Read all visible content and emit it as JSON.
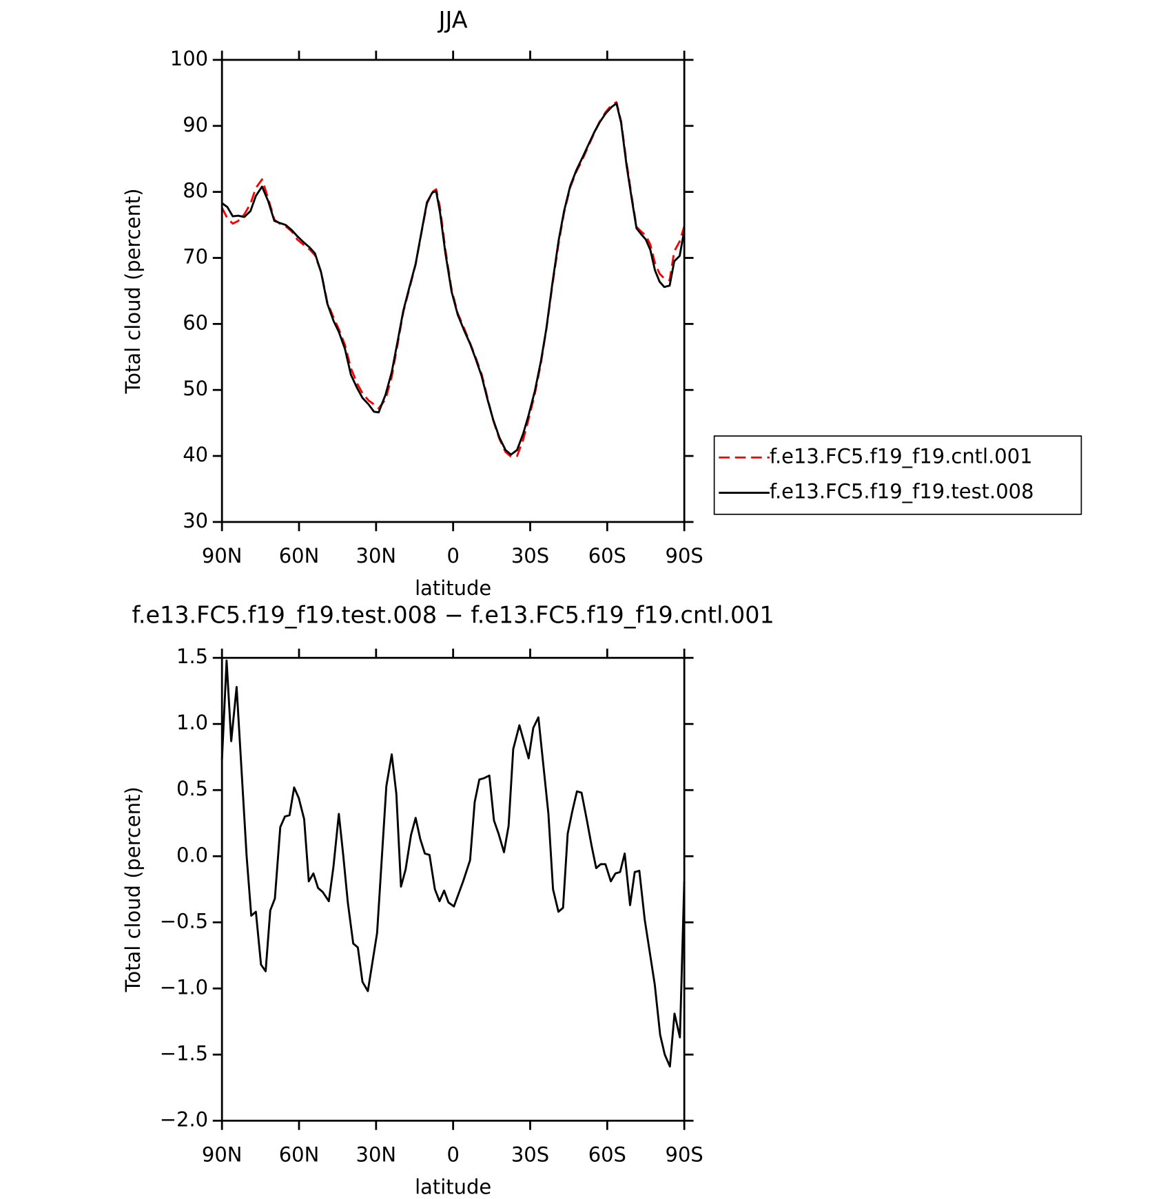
{
  "chart_data": [
    {
      "type": "line",
      "title": "JJA",
      "x_label": "latitude",
      "y_label": "Total cloud (percent)",
      "x": [
        90,
        87.9,
        85.8,
        83.7,
        81.3,
        78.9,
        76.8,
        74.4,
        72.0,
        69.6,
        67.5,
        65.2,
        62.8,
        60.7,
        58.3,
        55.9,
        53.8,
        51.4,
        49.0,
        46.6,
        44.5,
        42.1,
        39.8,
        37.4,
        35.3,
        32.9,
        30.8,
        29.0,
        26.3,
        23.9,
        21.5,
        19.4,
        17.0,
        14.6,
        12.2,
        10.2,
        8.1,
        6.6,
        5.1,
        3.0,
        0.6,
        -1.8,
        -4.2,
        -6.6,
        -8.7,
        -11.1,
        -13.5,
        -15.6,
        -18.0,
        -20.4,
        -22.5,
        -24.9,
        -27.3,
        -29.4,
        -31.8,
        -34.2,
        -36.3,
        -38.7,
        -41.1,
        -43.2,
        -45.6,
        -48.0,
        -50.1,
        -52.5,
        -54.9,
        -57.0,
        -59.4,
        -61.8,
        -63.6,
        -65.4,
        -67.5,
        -69.6,
        -71.4,
        -73.2,
        -75.0,
        -76.8,
        -78.6,
        -80.4,
        -82.2,
        -84.3,
        -86.1,
        -88.2,
        -90
      ],
      "series": [
        {
          "name": "f.e13.FC5.f19_f19.cntl.001",
          "color": "#ff0000",
          "linestyle": "dashed",
          "values": [
            77.6,
            76.0,
            75.2,
            75.6,
            76.6,
            78.2,
            80.6,
            81.9,
            79.0,
            75.8,
            75.2,
            74.8,
            74.0,
            72.8,
            72.0,
            71.3,
            70.4,
            67.9,
            63.3,
            61.0,
            59.2,
            56.8,
            53.3,
            51.0,
            49.5,
            48.4,
            47.8,
            47.2,
            48.6,
            52.0,
            57.2,
            61.8,
            65.4,
            69.0,
            74.1,
            78.2,
            80.0,
            80.4,
            77.6,
            71.2,
            65.2,
            61.6,
            59.4,
            57.1,
            55.0,
            52.4,
            48.6,
            45.4,
            42.6,
            40.6,
            39.9,
            40.0,
            42.5,
            45.6,
            49.4,
            54.1,
            59.2,
            66.0,
            72.3,
            76.9,
            80.7,
            83.1,
            84.7,
            86.8,
            88.9,
            90.6,
            92.1,
            93.2,
            93.6,
            90.7,
            84.5,
            79.1,
            74.7,
            74.0,
            73.4,
            72.0,
            69.2,
            67.6,
            66.9,
            66.6,
            71.0,
            72.5,
            74.8
          ]
        },
        {
          "name": "f.e13.FC5.f19_f19.test.008",
          "color": "#000000",
          "linestyle": "solid",
          "values": [
            78.3,
            77.7,
            76.3,
            76.4,
            76.2,
            77.1,
            79.4,
            80.8,
            78.6,
            75.6,
            75.3,
            75.0,
            74.2,
            73.3,
            72.4,
            71.6,
            70.7,
            67.8,
            63.1,
            60.5,
            58.8,
            56.2,
            52.3,
            50.3,
            48.8,
            47.8,
            46.7,
            46.6,
            49.3,
            52.7,
            57.6,
            62.0,
            65.6,
            69.1,
            74.2,
            78.4,
            79.9,
            80.1,
            76.9,
            70.7,
            64.9,
            61.4,
            59.1,
            57.0,
            54.8,
            52.1,
            48.4,
            45.5,
            42.8,
            40.9,
            40.2,
            40.9,
            43.4,
            46.2,
            49.8,
            54.4,
            59.3,
            66.3,
            72.7,
            77.1,
            80.9,
            83.3,
            85.0,
            87.0,
            89.0,
            90.5,
            91.9,
            92.9,
            93.4,
            90.5,
            84.1,
            78.8,
            74.5,
            73.6,
            72.8,
            71.2,
            68.1,
            66.4,
            65.6,
            65.8,
            69.5,
            70.3,
            74.2
          ]
        }
      ],
      "xlim": [
        90,
        -90
      ],
      "xticks": [
        {
          "value": 90,
          "label": "90N"
        },
        {
          "value": 60,
          "label": "60N"
        },
        {
          "value": 30,
          "label": "30N"
        },
        0,
        {
          "value": -30,
          "label": "30S"
        },
        {
          "value": -60,
          "label": "60S"
        },
        {
          "value": -90,
          "label": "90S"
        }
      ],
      "ylim": [
        30,
        100
      ],
      "yticks": [
        30,
        40,
        50,
        60,
        70,
        80,
        90,
        100
      ],
      "legend": "right"
    },
    {
      "type": "line",
      "title": "f.e13.FC5.f19_f19.test.008 − f.e13.FC5.f19_f19.cntl.001",
      "x_label": "latitude",
      "y_label": "Total cloud (percent)",
      "x": [
        90,
        88.2,
        86.4,
        84.3,
        80.4,
        78.6,
        76.8,
        74.8,
        73.0,
        71.2,
        69.4,
        67.3,
        65.5,
        63.7,
        61.9,
        60.1,
        58.0,
        56.2,
        54.4,
        52.6,
        50.8,
        48.4,
        46.6,
        44.5,
        42.8,
        41.0,
        38.9,
        37.1,
        35.3,
        33.2,
        29.6,
        26.0,
        23.9,
        22.1,
        20.3,
        18.5,
        16.4,
        14.6,
        12.8,
        11.0,
        9.2,
        7.1,
        5.3,
        3.5,
        1.8,
        -0.3,
        -3.9,
        -6.6,
        -8.4,
        -10.2,
        -12.0,
        -14.1,
        -15.9,
        -17.7,
        -19.8,
        -21.6,
        -23.4,
        -25.8,
        -29.4,
        -31.2,
        -33.2,
        -37.1,
        -38.9,
        -41.0,
        -42.8,
        -44.6,
        -46.4,
        -48.2,
        -50.0,
        -52.1,
        -53.9,
        -55.7,
        -57.5,
        -59.3,
        -61.4,
        -63.2,
        -65.0,
        -66.8,
        -68.9,
        -70.7,
        -72.5,
        -74.6,
        -78.5,
        -80.6,
        -82.4,
        -84.4,
        -86.2,
        -88.3,
        -90
      ],
      "values": [
        0.73,
        1.48,
        0.87,
        1.28,
        0.0,
        -0.45,
        -0.42,
        -0.82,
        -0.87,
        -0.41,
        -0.32,
        0.22,
        0.3,
        0.31,
        0.52,
        0.44,
        0.28,
        -0.19,
        -0.13,
        -0.24,
        -0.27,
        -0.34,
        -0.08,
        0.32,
        0.01,
        -0.35,
        -0.66,
        -0.69,
        -0.95,
        -1.02,
        -0.58,
        0.53,
        0.77,
        0.47,
        -0.23,
        -0.1,
        0.16,
        0.29,
        0.13,
        0.02,
        0.01,
        -0.25,
        -0.34,
        -0.26,
        -0.35,
        -0.38,
        -0.19,
        -0.03,
        0.41,
        0.58,
        0.59,
        0.61,
        0.27,
        0.17,
        0.03,
        0.23,
        0.81,
        0.99,
        0.74,
        0.97,
        1.05,
        0.32,
        -0.25,
        -0.42,
        -0.39,
        0.17,
        0.34,
        0.49,
        0.48,
        0.27,
        0.08,
        -0.09,
        -0.06,
        -0.06,
        -0.19,
        -0.13,
        -0.12,
        0.02,
        -0.37,
        -0.12,
        -0.11,
        -0.48,
        -0.97,
        -1.35,
        -1.5,
        -1.59,
        -1.19,
        -1.37,
        -0.19
      ],
      "color": "#000000",
      "xlim": [
        90,
        -90
      ],
      "xticks": [
        {
          "value": 90,
          "label": "90N"
        },
        {
          "value": 60,
          "label": "60N"
        },
        {
          "value": 30,
          "label": "30N"
        },
        0,
        {
          "value": -30,
          "label": "30S"
        },
        {
          "value": -60,
          "label": "60S"
        },
        {
          "value": -90,
          "label": "90S"
        }
      ],
      "ylim": [
        -2.0,
        1.5
      ],
      "yticks": [
        {
          "value": -2.0,
          "label": "−2.0"
        },
        {
          "value": -1.5,
          "label": "−1.5"
        },
        {
          "value": -1.0,
          "label": "−1.0"
        },
        {
          "value": -0.5,
          "label": "−0.5"
        },
        {
          "value": 0.0,
          "label": "0.0"
        },
        0.5,
        {
          "value": 1.0,
          "label": "1.0"
        },
        1.5
      ]
    }
  ]
}
